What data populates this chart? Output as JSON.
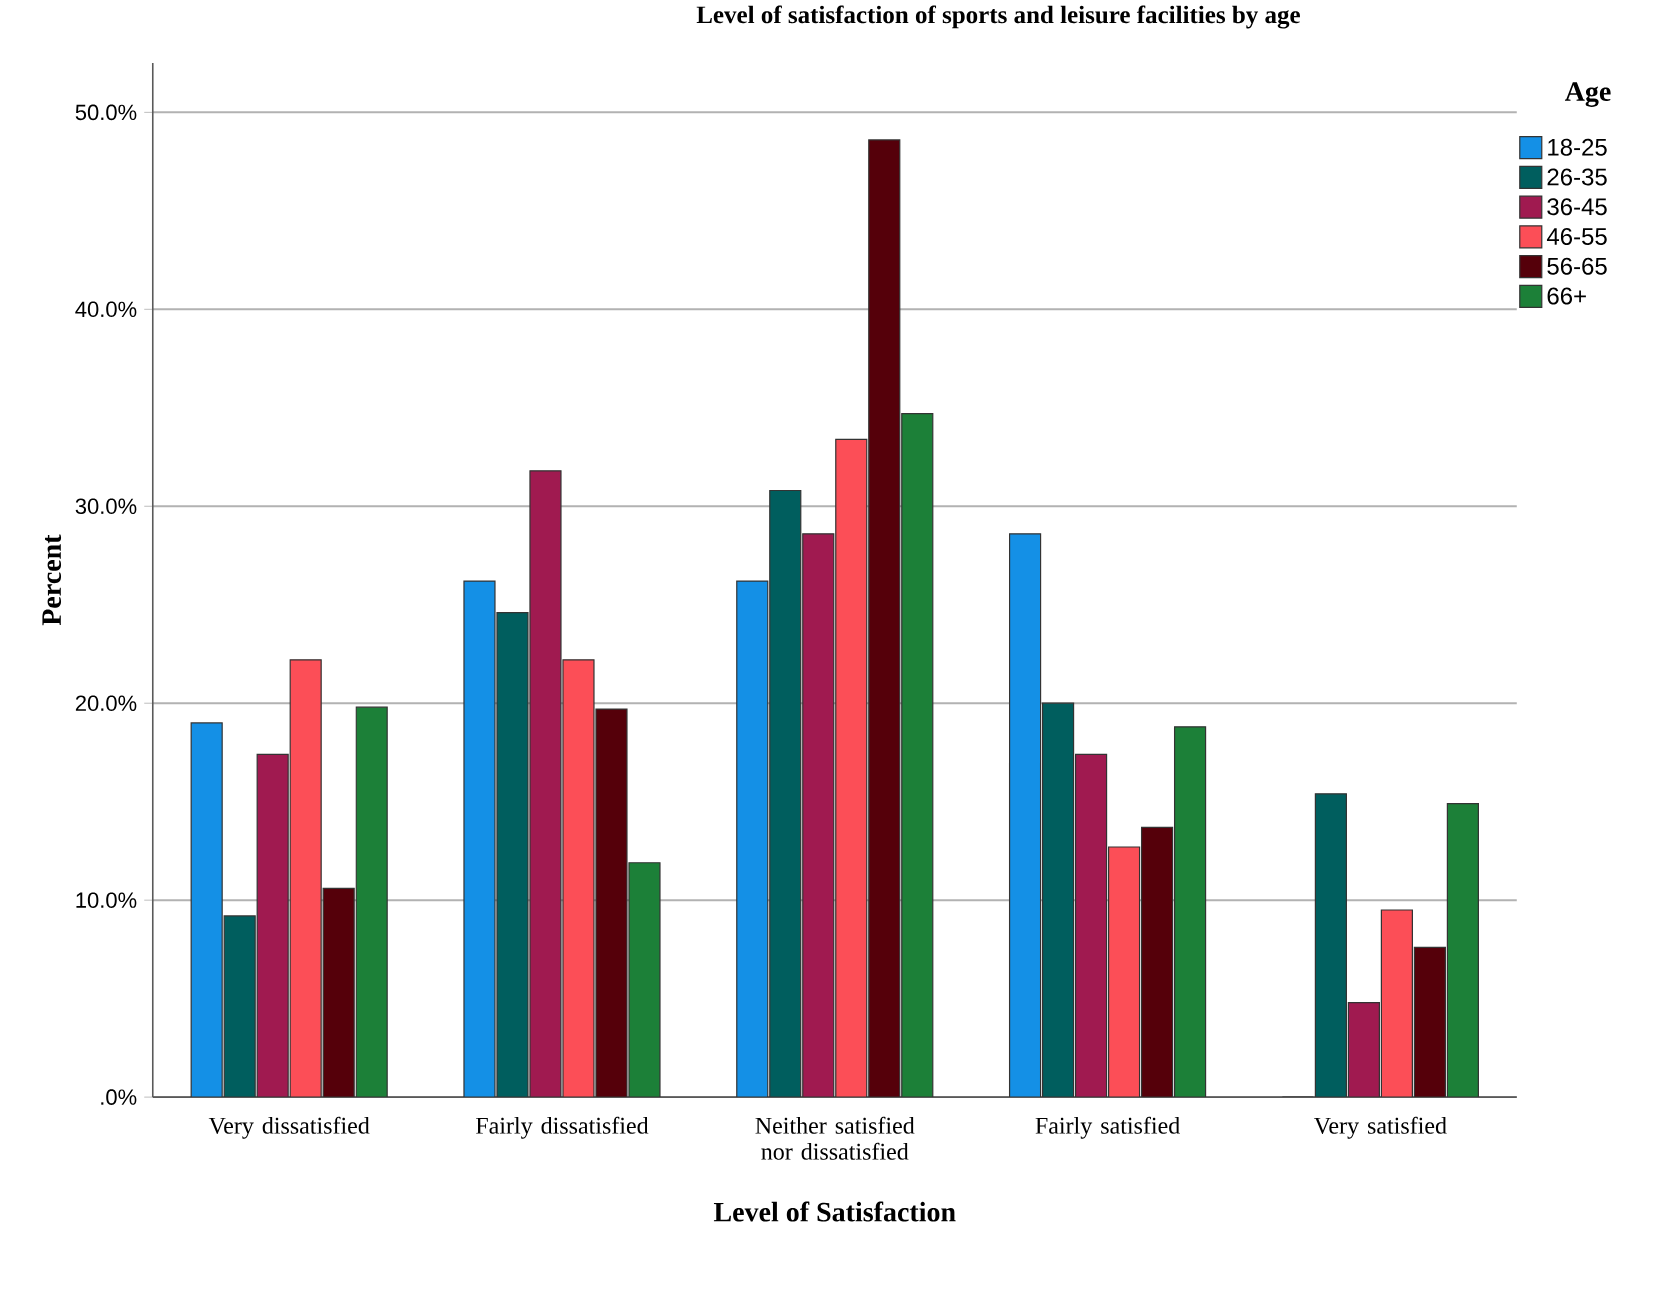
{
  "chart_data": {
    "type": "bar",
    "title": "Level of satisfaction of sports and leisure facilities by age",
    "xlabel": "Level of Satisfaction",
    "ylabel": "Percent",
    "legend_title": "Age",
    "categories": [
      "Very dissatisfied",
      "Fairly dissatisfied",
      "Neither satisfied nor dissatisfied",
      "Fairly satisfied",
      "Very satisfied"
    ],
    "series": [
      {
        "name": "18-25",
        "color": "#1490e6",
        "values": [
          19.0,
          26.2,
          26.2,
          28.6,
          0
        ]
      },
      {
        "name": "26-35",
        "color": "#005e5e",
        "values": [
          9.2,
          24.6,
          30.8,
          20.0,
          15.4
        ]
      },
      {
        "name": "36-45",
        "color": "#a01a50",
        "values": [
          17.4,
          31.8,
          28.6,
          17.4,
          4.8
        ]
      },
      {
        "name": "46-55",
        "color": "#fc4e57",
        "values": [
          22.2,
          22.2,
          33.4,
          12.7,
          9.5
        ]
      },
      {
        "name": "56-65",
        "color": "#55000a",
        "values": [
          10.6,
          19.7,
          48.6,
          13.7,
          7.6
        ]
      },
      {
        "name": "66+",
        "color": "#1c8038",
        "values": [
          19.8,
          11.9,
          34.7,
          18.8,
          14.9
        ]
      }
    ],
    "ylim": [
      0,
      52.5
    ],
    "yticks": [
      {
        "value": 0,
        "label": ".0%"
      },
      {
        "value": 10,
        "label": "10.0%"
      },
      {
        "value": 20,
        "label": "20.0%"
      },
      {
        "value": 30,
        "label": "30.0%"
      },
      {
        "value": 40,
        "label": "40.0%"
      },
      {
        "value": 50,
        "label": "50.0%"
      }
    ],
    "grid": "y",
    "legend": "top right"
  }
}
